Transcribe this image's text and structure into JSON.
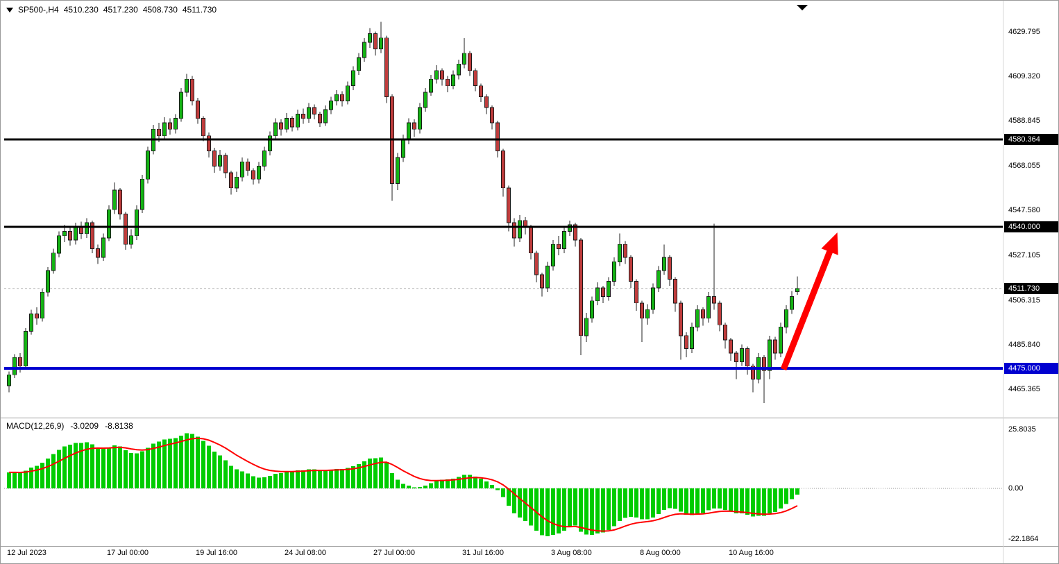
{
  "header": {
    "symbol_period": "SP500-,H4",
    "open": "4510.230",
    "high": "4517.230",
    "low": "4508.730",
    "close": "4511.730"
  },
  "chart_data": {
    "type": "candlestick",
    "symbol": "SP500-",
    "timeframe": "H4",
    "ohlc": [
      [
        4467.0,
        4473.5,
        4464.0,
        4472.0
      ],
      [
        4472.0,
        4481.5,
        4470.5,
        4480.0
      ],
      [
        4480.0,
        4482.0,
        4473.0,
        4476.0
      ],
      [
        4476.0,
        4493.5,
        4475.0,
        4492.0
      ],
      [
        4492.0,
        4502.0,
        4490.5,
        4500.0
      ],
      [
        4500.0,
        4503.0,
        4495.0,
        4498.0
      ],
      [
        4498.0,
        4511.5,
        4496.5,
        4510.0
      ],
      [
        4510.0,
        4521.5,
        4508.0,
        4520.0
      ],
      [
        4520.0,
        4530.0,
        4518.5,
        4528.0
      ],
      [
        4528.0,
        4538.0,
        4526.0,
        4536.0
      ],
      [
        4536.0,
        4541.0,
        4533.0,
        4538.0
      ],
      [
        4538.0,
        4540.0,
        4531.5,
        4534.0
      ],
      [
        4534.0,
        4542.0,
        4532.0,
        4540.0
      ],
      [
        4540.0,
        4542.5,
        4534.5,
        4537.0
      ],
      [
        4537.0,
        4544.0,
        4535.0,
        4542.0
      ],
      [
        4542.0,
        4543.0,
        4528.0,
        4530.0
      ],
      [
        4530.0,
        4532.0,
        4523.0,
        4526.0
      ],
      [
        4526.0,
        4537.0,
        4524.5,
        4535.0
      ],
      [
        4535.0,
        4550.0,
        4533.5,
        4548.0
      ],
      [
        4548.0,
        4560.5,
        4546.0,
        4557.0
      ],
      [
        4557.0,
        4558.0,
        4543.5,
        4546.0
      ],
      [
        4546.0,
        4547.0,
        4529.5,
        4532.0
      ],
      [
        4532.0,
        4539.0,
        4530.0,
        4536.0
      ],
      [
        4536.0,
        4550.0,
        4534.0,
        4548.0
      ],
      [
        4548.0,
        4564.0,
        4546.5,
        4562.0
      ],
      [
        4562.0,
        4577.0,
        4560.0,
        4575.0
      ],
      [
        4575.0,
        4587.0,
        4573.5,
        4585.0
      ],
      [
        4585.0,
        4588.0,
        4579.0,
        4582.0
      ],
      [
        4582.0,
        4590.5,
        4580.0,
        4588.0
      ],
      [
        4588.0,
        4590.0,
        4582.5,
        4585.0
      ],
      [
        4585.0,
        4592.0,
        4583.0,
        4590.0
      ],
      [
        4590.0,
        4604.0,
        4588.5,
        4602.0
      ],
      [
        4602.0,
        4610.5,
        4600.0,
        4608.0
      ],
      [
        4608.0,
        4609.5,
        4596.0,
        4598.0
      ],
      [
        4598.0,
        4599.5,
        4587.5,
        4590.0
      ],
      [
        4590.0,
        4591.0,
        4579.5,
        4582.0
      ],
      [
        4582.0,
        4583.5,
        4572.0,
        4575.0
      ],
      [
        4575.0,
        4576.5,
        4565.0,
        4568.0
      ],
      [
        4568.0,
        4575.5,
        4566.0,
        4573.0
      ],
      [
        4573.0,
        4574.0,
        4562.5,
        4565.0
      ],
      [
        4565.0,
        4566.0,
        4555.0,
        4558.0
      ],
      [
        4558.0,
        4565.5,
        4556.0,
        4563.0
      ],
      [
        4563.0,
        4572.0,
        4561.0,
        4570.0
      ],
      [
        4570.0,
        4571.5,
        4563.5,
        4566.0
      ],
      [
        4566.0,
        4567.0,
        4559.5,
        4562.0
      ],
      [
        4562.0,
        4570.0,
        4560.0,
        4568.0
      ],
      [
        4568.0,
        4577.0,
        4566.0,
        4575.0
      ],
      [
        4575.0,
        4584.0,
        4573.0,
        4582.0
      ],
      [
        4582.0,
        4590.0,
        4580.5,
        4588.0
      ],
      [
        4588.0,
        4589.5,
        4582.0,
        4585.0
      ],
      [
        4585.0,
        4592.5,
        4583.5,
        4590.0
      ],
      [
        4590.0,
        4591.0,
        4584.0,
        4586.0
      ],
      [
        4586.0,
        4594.0,
        4584.5,
        4592.0
      ],
      [
        4592.0,
        4594.5,
        4587.5,
        4590.0
      ],
      [
        4590.0,
        4597.0,
        4588.0,
        4595.0
      ],
      [
        4595.0,
        4596.5,
        4589.5,
        4592.0
      ],
      [
        4592.0,
        4593.0,
        4586.0,
        4588.0
      ],
      [
        4588.0,
        4596.0,
        4586.5,
        4594.0
      ],
      [
        4594.0,
        4600.0,
        4592.0,
        4598.0
      ],
      [
        4598.0,
        4603.0,
        4596.0,
        4601.0
      ],
      [
        4601.0,
        4602.5,
        4595.5,
        4598.0
      ],
      [
        4598.0,
        4607.0,
        4596.5,
        4605.0
      ],
      [
        4605.0,
        4614.0,
        4603.0,
        4612.0
      ],
      [
        4612.0,
        4620.0,
        4610.0,
        4618.0
      ],
      [
        4618.0,
        4627.0,
        4616.0,
        4625.0
      ],
      [
        4625.0,
        4631.5,
        4622.5,
        4629.0
      ],
      [
        4629.0,
        4630.0,
        4619.0,
        4622.0
      ],
      [
        4622.0,
        4634.5,
        4620.0,
        4627.0
      ],
      [
        4627.0,
        4628.0,
        4597.0,
        4600.0
      ],
      [
        4600.0,
        4601.0,
        4552.0,
        4560.0
      ],
      [
        4560.0,
        4574.0,
        4557.0,
        4572.0
      ],
      [
        4572.0,
        4582.5,
        4570.0,
        4580.0
      ],
      [
        4580.0,
        4590.0,
        4578.0,
        4588.0
      ],
      [
        4588.0,
        4589.5,
        4581.5,
        4585.0
      ],
      [
        4585.0,
        4597.0,
        4583.0,
        4595.0
      ],
      [
        4595.0,
        4604.0,
        4593.0,
        4602.0
      ],
      [
        4602.0,
        4610.0,
        4600.5,
        4608.0
      ],
      [
        4608.0,
        4614.5,
        4606.0,
        4612.0
      ],
      [
        4612.0,
        4613.0,
        4605.0,
        4608.0
      ],
      [
        4608.0,
        4609.5,
        4602.0,
        4605.0
      ],
      [
        4605.0,
        4612.0,
        4603.5,
        4610.0
      ],
      [
        4610.0,
        4617.0,
        4608.0,
        4615.0
      ],
      [
        4615.0,
        4627.0,
        4613.0,
        4620.0
      ],
      [
        4620.0,
        4621.0,
        4609.5,
        4612.0
      ],
      [
        4612.0,
        4613.0,
        4602.5,
        4605.0
      ],
      [
        4605.0,
        4606.0,
        4597.5,
        4600.0
      ],
      [
        4600.0,
        4601.0,
        4592.0,
        4595.0
      ],
      [
        4595.0,
        4596.0,
        4585.0,
        4588.0
      ],
      [
        4588.0,
        4589.0,
        4572.0,
        4575.0
      ],
      [
        4575.0,
        4576.0,
        4554.0,
        4558.0
      ],
      [
        4558.0,
        4559.0,
        4538.0,
        4542.0
      ],
      [
        4542.0,
        4544.0,
        4531.0,
        4535.0
      ],
      [
        4535.0,
        4545.5,
        4533.0,
        4543.0
      ],
      [
        4543.0,
        4544.5,
        4536.5,
        4540.0
      ],
      [
        4540.0,
        4541.0,
        4525.0,
        4528.0
      ],
      [
        4528.0,
        4529.0,
        4514.5,
        4518.0
      ],
      [
        4518.0,
        4519.0,
        4508.0,
        4512.0
      ],
      [
        4512.0,
        4524.0,
        4510.0,
        4522.0
      ],
      [
        4522.0,
        4534.0,
        4520.0,
        4532.0
      ],
      [
        4532.0,
        4536.0,
        4527.0,
        4530.0
      ],
      [
        4530.0,
        4540.5,
        4528.0,
        4538.0
      ],
      [
        4538.0,
        4543.0,
        4536.0,
        4541.0
      ],
      [
        4541.0,
        4542.0,
        4531.0,
        4534.0
      ],
      [
        4534.0,
        4535.0,
        4481.0,
        4490.0
      ],
      [
        4490.0,
        4500.5,
        4487.0,
        4498.0
      ],
      [
        4498.0,
        4508.0,
        4496.0,
        4506.0
      ],
      [
        4506.0,
        4514.5,
        4504.0,
        4512.0
      ],
      [
        4512.0,
        4513.0,
        4505.0,
        4508.0
      ],
      [
        4508.0,
        4517.0,
        4506.0,
        4515.0
      ],
      [
        4515.0,
        4526.0,
        4513.0,
        4524.0
      ],
      [
        4524.0,
        4537.0,
        4522.0,
        4532.0
      ],
      [
        4532.0,
        4533.5,
        4523.0,
        4526.0
      ],
      [
        4526.0,
        4527.0,
        4512.0,
        4515.0
      ],
      [
        4515.0,
        4516.0,
        4501.5,
        4505.0
      ],
      [
        4505.0,
        4506.0,
        4487.0,
        4498.0
      ],
      [
        4498.0,
        4504.5,
        4495.0,
        4502.0
      ],
      [
        4502.0,
        4514.0,
        4500.0,
        4512.0
      ],
      [
        4512.0,
        4522.0,
        4510.0,
        4520.0
      ],
      [
        4520.0,
        4532.0,
        4518.0,
        4526.0
      ],
      [
        4526.0,
        4527.0,
        4513.0,
        4516.0
      ],
      [
        4516.0,
        4517.0,
        4501.0,
        4505.0
      ],
      [
        4505.0,
        4506.0,
        4479.0,
        4490.0
      ],
      [
        4490.0,
        4491.5,
        4480.0,
        4484.0
      ],
      [
        4484.0,
        4496.0,
        4482.0,
        4494.0
      ],
      [
        4494.0,
        4504.0,
        4492.0,
        4502.0
      ],
      [
        4502.0,
        4503.0,
        4494.5,
        4498.0
      ],
      [
        4498.0,
        4510.0,
        4496.0,
        4508.0
      ],
      [
        4508.0,
        4541.5,
        4502.0,
        4505.0
      ],
      [
        4505.0,
        4506.0,
        4492.0,
        4495.0
      ],
      [
        4495.0,
        4496.0,
        4484.0,
        4488.0
      ],
      [
        4488.0,
        4489.0,
        4478.5,
        4482.0
      ],
      [
        4482.0,
        4483.0,
        4470.0,
        4478.0
      ],
      [
        4478.0,
        4486.0,
        4476.0,
        4484.0
      ],
      [
        4484.0,
        4485.0,
        4472.0,
        4476.0
      ],
      [
        4476.0,
        4477.0,
        4464.0,
        4470.0
      ],
      [
        4470.0,
        4482.0,
        4468.0,
        4480.0
      ],
      [
        4480.0,
        4481.0,
        4459.0,
        4474.0
      ],
      [
        4474.0,
        4490.0,
        4470.0,
        4488.0
      ],
      [
        4488.0,
        4489.5,
        4479.0,
        4482.0
      ],
      [
        4482.0,
        4496.0,
        4480.0,
        4494.0
      ],
      [
        4494.0,
        4504.0,
        4491.0,
        4502.0
      ],
      [
        4502.0,
        4510.5,
        4500.0,
        4508.0
      ],
      [
        4510.23,
        4517.23,
        4508.73,
        4511.73
      ]
    ],
    "current_price": 4511.73,
    "y_axis": {
      "ticks": [
        {
          "label": "4629.795",
          "value": 4629.795
        },
        {
          "label": "4609.320",
          "value": 4609.32
        },
        {
          "label": "4588.845",
          "value": 4588.845
        },
        {
          "label": "4568.055",
          "value": 4568.055
        },
        {
          "label": "4547.580",
          "value": 4547.58
        },
        {
          "label": "4527.105",
          "value": 4527.105
        },
        {
          "label": "4506.315",
          "value": 4506.315
        },
        {
          "label": "4485.840",
          "value": 4485.84
        },
        {
          "label": "4465.365",
          "value": 4465.365
        }
      ],
      "badges": [
        {
          "label": "4580.364",
          "value": 4580.364,
          "bg": "#000000",
          "fg": "#ffffff",
          "object": "resistance-4580"
        },
        {
          "label": "4540.000",
          "value": 4540.0,
          "bg": "#000000",
          "fg": "#ffffff",
          "object": "resistance-4540"
        },
        {
          "label": "4511.730",
          "value": 4511.73,
          "bg": "#000000",
          "fg": "#ffffff",
          "object": "current-price"
        },
        {
          "label": "4475.000",
          "value": 4475.0,
          "bg": "#0000d0",
          "fg": "#ffffff",
          "object": "support-4475"
        }
      ]
    },
    "x_axis": {
      "ticks": [
        {
          "label": "12 Jul 2023",
          "index": 0
        },
        {
          "label": "17 Jul 00:00",
          "index": 18
        },
        {
          "label": "19 Jul 16:00",
          "index": 34
        },
        {
          "label": "24 Jul 08:00",
          "index": 50
        },
        {
          "label": "27 Jul 00:00",
          "index": 66
        },
        {
          "label": "31 Jul 16:00",
          "index": 82
        },
        {
          "label": "3 Aug 08:00",
          "index": 98
        },
        {
          "label": "8 Aug 00:00",
          "index": 114
        },
        {
          "label": "10 Aug 16:00",
          "index": 130
        }
      ]
    },
    "horizontal_lines": [
      {
        "price": 4580.364,
        "color": "#000000",
        "width": 3,
        "name": "resistance-line-4580"
      },
      {
        "price": 4540.0,
        "color": "#000000",
        "width": 3,
        "name": "resistance-line-4540"
      },
      {
        "price": 4475.0,
        "color": "#0000d0",
        "width": 4,
        "name": "support-line-4475"
      }
    ],
    "arrow": {
      "from_index": 139.5,
      "from_price": 4474.5,
      "to_index": 149.2,
      "to_price": 4537.5,
      "color": "#ff0000"
    },
    "indicator": {
      "name": "MACD",
      "label": "MACD(12,26,9)",
      "value_main": "-3.0209",
      "value_signal": "-8.8138",
      "fast": 12,
      "slow": 26,
      "signal": 9,
      "y_ticks": [
        {
          "label": "25.8035",
          "value": 25.8035
        },
        {
          "label": "0.00",
          "value": 0
        },
        {
          "label": "-22.1864",
          "value": -22.1864
        }
      ]
    },
    "colors": {
      "bull": "#14b314",
      "bear": "#bf3c3c",
      "wick": "#1f1f1f",
      "histogram": "#00cc00",
      "signal_line": "#ff0000",
      "resistance": "#000000",
      "support": "#0000d0",
      "arrow": "#ff0000",
      "current_price_line": "#b4b4b4",
      "frame": "#9a9a9a"
    }
  }
}
